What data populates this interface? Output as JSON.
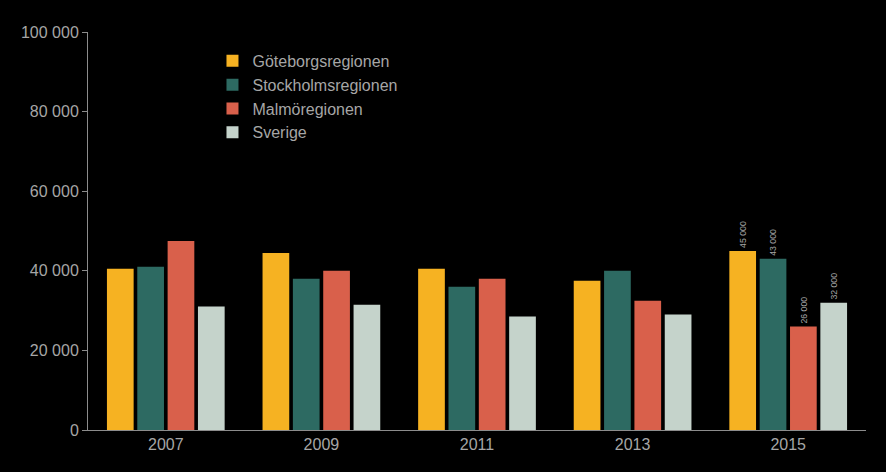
{
  "chart_data": {
    "type": "bar",
    "categories": [
      "2007",
      "2009",
      "2011",
      "2013",
      "2015"
    ],
    "series": [
      {
        "name": "Göteborgsregionen",
        "color": "#f6b222",
        "values": [
          40500,
          44500,
          40500,
          37500,
          45000
        ],
        "value_labels": [
          null,
          null,
          null,
          null,
          "45 000"
        ]
      },
      {
        "name": "Stockholmsregionen",
        "color": "#2d6a62",
        "values": [
          41000,
          38000,
          36000,
          40000,
          43000
        ],
        "value_labels": [
          null,
          null,
          null,
          null,
          "43 000"
        ]
      },
      {
        "name": "Malmöregionen",
        "color": "#d9604b",
        "values": [
          47500,
          40000,
          38000,
          32500,
          26000
        ],
        "value_labels": [
          null,
          null,
          null,
          null,
          "26 000"
        ]
      },
      {
        "name": "Sverige",
        "color": "#c5d3cb",
        "values": [
          31000,
          31500,
          28500,
          29000,
          32000
        ],
        "value_labels": [
          null,
          null,
          null,
          null,
          "32 000"
        ]
      }
    ],
    "ylim": [
      0,
      100000
    ],
    "yticks": [
      0,
      {
        "value": 20000,
        "label": "20 000"
      },
      {
        "value": 40000,
        "label": "40 000"
      },
      {
        "value": 60000,
        "label": "60 000"
      },
      {
        "value": 80000,
        "label": "80 000"
      },
      {
        "value": 100000,
        "label": "100 000"
      }
    ],
    "grid": false,
    "legend": "upper left",
    "data_labels": true
  }
}
